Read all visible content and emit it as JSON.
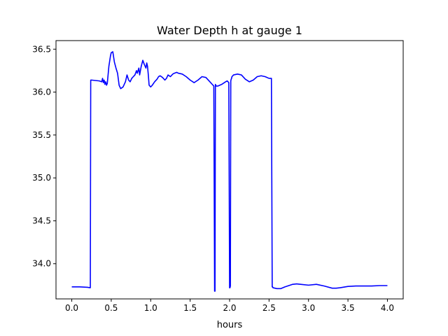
{
  "chart_data": {
    "type": "line",
    "title": "Water Depth h at gauge 1",
    "xlabel": "hours",
    "ylabel": "",
    "xlim": [
      -0.2,
      4.2
    ],
    "ylim": [
      33.59,
      36.6
    ],
    "xticks": [
      0.0,
      0.5,
      1.0,
      1.5,
      2.0,
      2.5,
      3.0,
      3.5,
      4.0
    ],
    "xtick_labels": [
      "0.0",
      "0.5",
      "1.0",
      "1.5",
      "2.0",
      "2.5",
      "3.0",
      "3.5",
      "4.0"
    ],
    "yticks": [
      34.0,
      34.5,
      35.0,
      35.5,
      36.0,
      36.5
    ],
    "ytick_labels": [
      "34.0",
      "34.5",
      "35.0",
      "35.5",
      "36.0",
      "36.5"
    ],
    "grid": false,
    "series": [
      {
        "color": "#0000ff",
        "x": [
          0.0,
          0.1,
          0.2,
          0.235,
          0.24,
          0.25,
          0.3,
          0.35,
          0.38,
          0.39,
          0.4,
          0.41,
          0.42,
          0.43,
          0.44,
          0.45,
          0.47,
          0.49,
          0.5,
          0.52,
          0.54,
          0.56,
          0.58,
          0.6,
          0.62,
          0.65,
          0.68,
          0.7,
          0.72,
          0.74,
          0.76,
          0.78,
          0.8,
          0.82,
          0.83,
          0.85,
          0.86,
          0.88,
          0.9,
          0.92,
          0.94,
          0.95,
          0.96,
          0.97,
          0.98,
          1.0,
          1.02,
          1.05,
          1.08,
          1.1,
          1.12,
          1.15,
          1.18,
          1.2,
          1.22,
          1.25,
          1.28,
          1.3,
          1.33,
          1.35,
          1.4,
          1.45,
          1.5,
          1.55,
          1.6,
          1.65,
          1.7,
          1.75,
          1.78,
          1.8,
          1.81,
          1.815,
          1.82,
          1.825,
          1.83,
          1.85,
          1.9,
          1.95,
          1.97,
          1.99,
          2.0,
          2.005,
          2.01,
          2.015,
          2.02,
          2.025,
          2.03,
          2.05,
          2.1,
          2.15,
          2.2,
          2.25,
          2.3,
          2.35,
          2.4,
          2.45,
          2.5,
          2.53,
          2.54,
          2.545,
          2.55,
          2.6,
          2.65,
          2.7,
          2.8,
          2.85,
          2.9,
          3.0,
          3.1,
          3.2,
          3.3,
          3.35,
          3.4,
          3.5,
          3.6,
          3.7,
          3.8,
          3.9,
          4.0
        ],
        "y": [
          33.73,
          33.73,
          33.725,
          33.72,
          36.14,
          36.14,
          36.135,
          36.13,
          36.12,
          36.16,
          36.11,
          36.14,
          36.09,
          36.12,
          36.08,
          36.1,
          36.3,
          36.42,
          36.46,
          36.47,
          36.35,
          36.28,
          36.22,
          36.08,
          36.04,
          36.06,
          36.12,
          36.2,
          36.14,
          36.12,
          36.16,
          36.18,
          36.2,
          36.25,
          36.22,
          36.28,
          36.2,
          36.3,
          36.37,
          36.32,
          36.28,
          36.34,
          36.3,
          36.2,
          36.08,
          36.06,
          36.08,
          36.12,
          36.15,
          36.18,
          36.19,
          36.17,
          36.14,
          36.16,
          36.2,
          36.18,
          36.21,
          36.22,
          36.23,
          36.22,
          36.21,
          36.18,
          36.14,
          36.11,
          36.14,
          36.18,
          36.17,
          36.12,
          36.09,
          36.07,
          33.68,
          33.68,
          36.09,
          36.08,
          36.07,
          36.07,
          36.09,
          36.12,
          36.13,
          36.11,
          33.72,
          33.72,
          33.74,
          36.13,
          36.15,
          36.16,
          36.18,
          36.2,
          36.21,
          36.2,
          36.15,
          36.12,
          36.14,
          36.18,
          36.19,
          36.18,
          36.16,
          36.16,
          33.73,
          33.73,
          33.72,
          33.71,
          33.71,
          33.73,
          33.76,
          33.765,
          33.76,
          33.75,
          33.76,
          33.74,
          33.715,
          33.715,
          33.72,
          33.735,
          33.74,
          33.74,
          33.74,
          33.745,
          33.745
        ]
      }
    ]
  }
}
